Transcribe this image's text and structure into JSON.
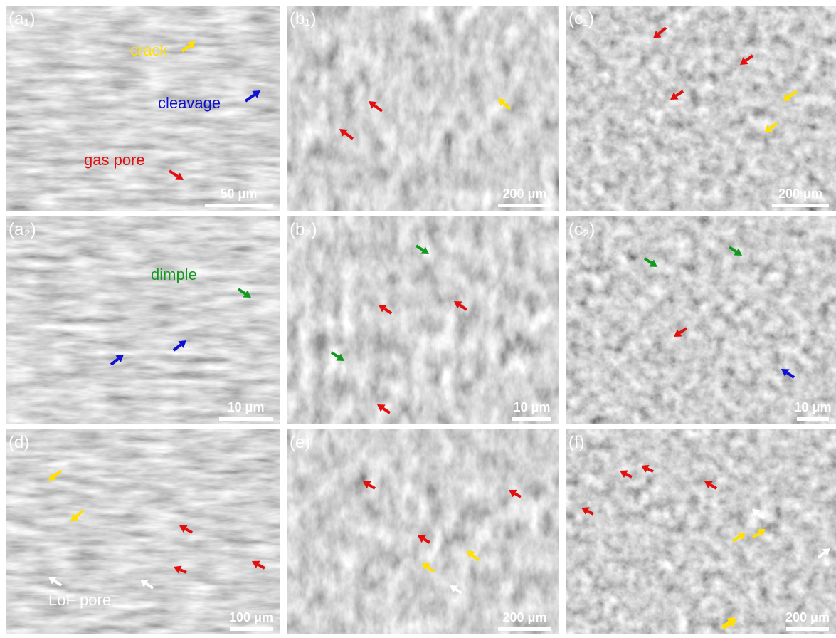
{
  "panels": [
    {
      "label": "(a₁)",
      "scale_bar": "50 μm",
      "annotations": [
        "crack",
        "cleavage",
        "gas pore"
      ]
    },
    {
      "label": "(b₁)",
      "scale_bar": "200 μm",
      "annotations": []
    },
    {
      "label": "(c₁)",
      "scale_bar": "200 μm",
      "annotations": []
    },
    {
      "label": "(a₂)",
      "scale_bar": "10 μm",
      "annotations": [
        "dimple"
      ]
    },
    {
      "label": "(b₂)",
      "scale_bar": "10 μm",
      "annotations": []
    },
    {
      "label": "(c₂)",
      "scale_bar": "10 μm",
      "annotations": []
    },
    {
      "label": "(d)",
      "scale_bar": "100 μm",
      "annotations": [
        "LoF pore"
      ]
    },
    {
      "label": "(e)",
      "scale_bar": "200 μm",
      "annotations": []
    },
    {
      "label": "(f)",
      "scale_bar": "200 μm",
      "annotations": []
    }
  ]
}
